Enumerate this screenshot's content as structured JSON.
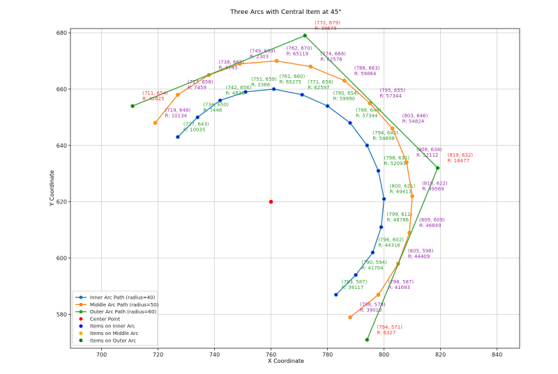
{
  "chart_data": {
    "type": "line",
    "title": "Three Arcs with Central Item at 45°",
    "xlabel": "X Coordinate",
    "ylabel": "Y Coordinate",
    "xlim": [
      689,
      848
    ],
    "ylim": [
      568,
      681.5
    ],
    "xticks": [
      700,
      720,
      740,
      760,
      780,
      800,
      820,
      840
    ],
    "yticks": [
      580,
      600,
      620,
      640,
      660,
      680
    ],
    "grid": true,
    "legend_position": "lower-left",
    "legend": [
      "Inner Arc Path (radius=40)",
      "Middle Arc Path (radius=50)",
      "Outer Arc Path (radius=60)",
      "Center Point",
      "Items on Inner Arc",
      "Items on Middle Arc",
      "Items on Outer Arc"
    ],
    "center": {
      "x": 760,
      "y": 620,
      "color": "#ff0000"
    },
    "series": [
      {
        "name": "Inner Arc Path (radius=40)",
        "color": "#1f77b4",
        "item_color": "#0000ff",
        "label_color": "#2ca02c",
        "points": [
          [
            727,
            643,
            10035
          ],
          [
            734,
            650,
            7448
          ],
          [
            742,
            656,
            4836
          ],
          [
            751,
            659,
            2366
          ],
          [
            761,
            660,
            65275
          ],
          [
            771,
            658,
            62597
          ],
          [
            780,
            654,
            59990
          ],
          [
            788,
            648,
            57344
          ],
          [
            794,
            640,
            54698
          ],
          [
            798,
            631,
            52091
          ],
          [
            800,
            621,
            49413
          ],
          [
            799,
            611,
            46786
          ],
          [
            796,
            602,
            44316
          ],
          [
            790,
            594,
            41704
          ],
          [
            783,
            587,
            39117
          ]
        ]
      },
      {
        "name": "Middle Arc Path (radius=50)",
        "color": "#ff7f0e",
        "item_color": "#ffa500",
        "label_color": "#9b30b0",
        "points": [
          [
            719,
            648,
            10134
          ],
          [
            727,
            658,
            7459
          ],
          [
            738,
            665,
            4743
          ],
          [
            749,
            669,
            2303
          ],
          [
            762,
            670,
            65119
          ],
          [
            774,
            668,
            62576
          ],
          [
            786,
            663,
            59864
          ],
          [
            795,
            655,
            57344
          ],
          [
            803,
            646,
            54824
          ],
          [
            808,
            634,
            52112
          ],
          [
            810,
            622,
            49569
          ],
          [
            809,
            609,
            46849
          ],
          [
            805,
            598,
            44409
          ],
          [
            798,
            587,
            41693
          ],
          [
            788,
            579,
            39018
          ]
        ]
      },
      {
        "name": "Outer Arc Path (radius=60)",
        "color": "#2ca02c",
        "item_color": "#008000",
        "label_color": "#ff3333",
        "points": [
          [
            711,
            654,
            42625
          ],
          [
            772,
            679,
            38675
          ],
          [
            819,
            632,
            18477
          ],
          [
            794,
            571,
            6327
          ]
        ]
      }
    ]
  }
}
